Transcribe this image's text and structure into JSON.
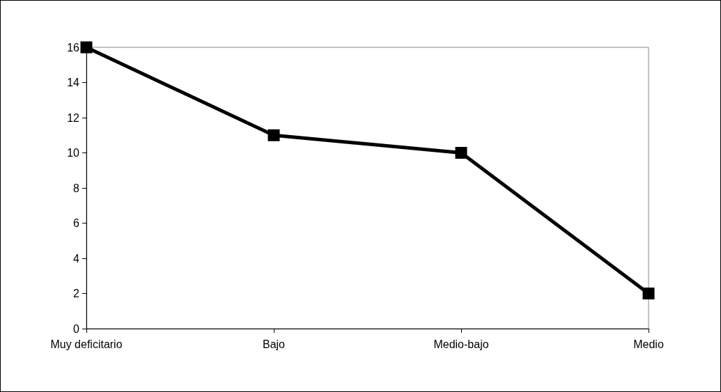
{
  "chart_data": {
    "type": "line",
    "categories": [
      "Muy deficitario",
      "Bajo",
      "Medio-bajo",
      "Medio"
    ],
    "series": [
      {
        "color": "#000000",
        "values": [
          16,
          11,
          10,
          2
        ]
      }
    ],
    "ylim": [
      0,
      16
    ],
    "yticks": [
      0,
      2,
      4,
      6,
      8,
      10,
      12,
      14,
      16
    ],
    "grid": false,
    "marker": "square",
    "line_style": "solid"
  }
}
